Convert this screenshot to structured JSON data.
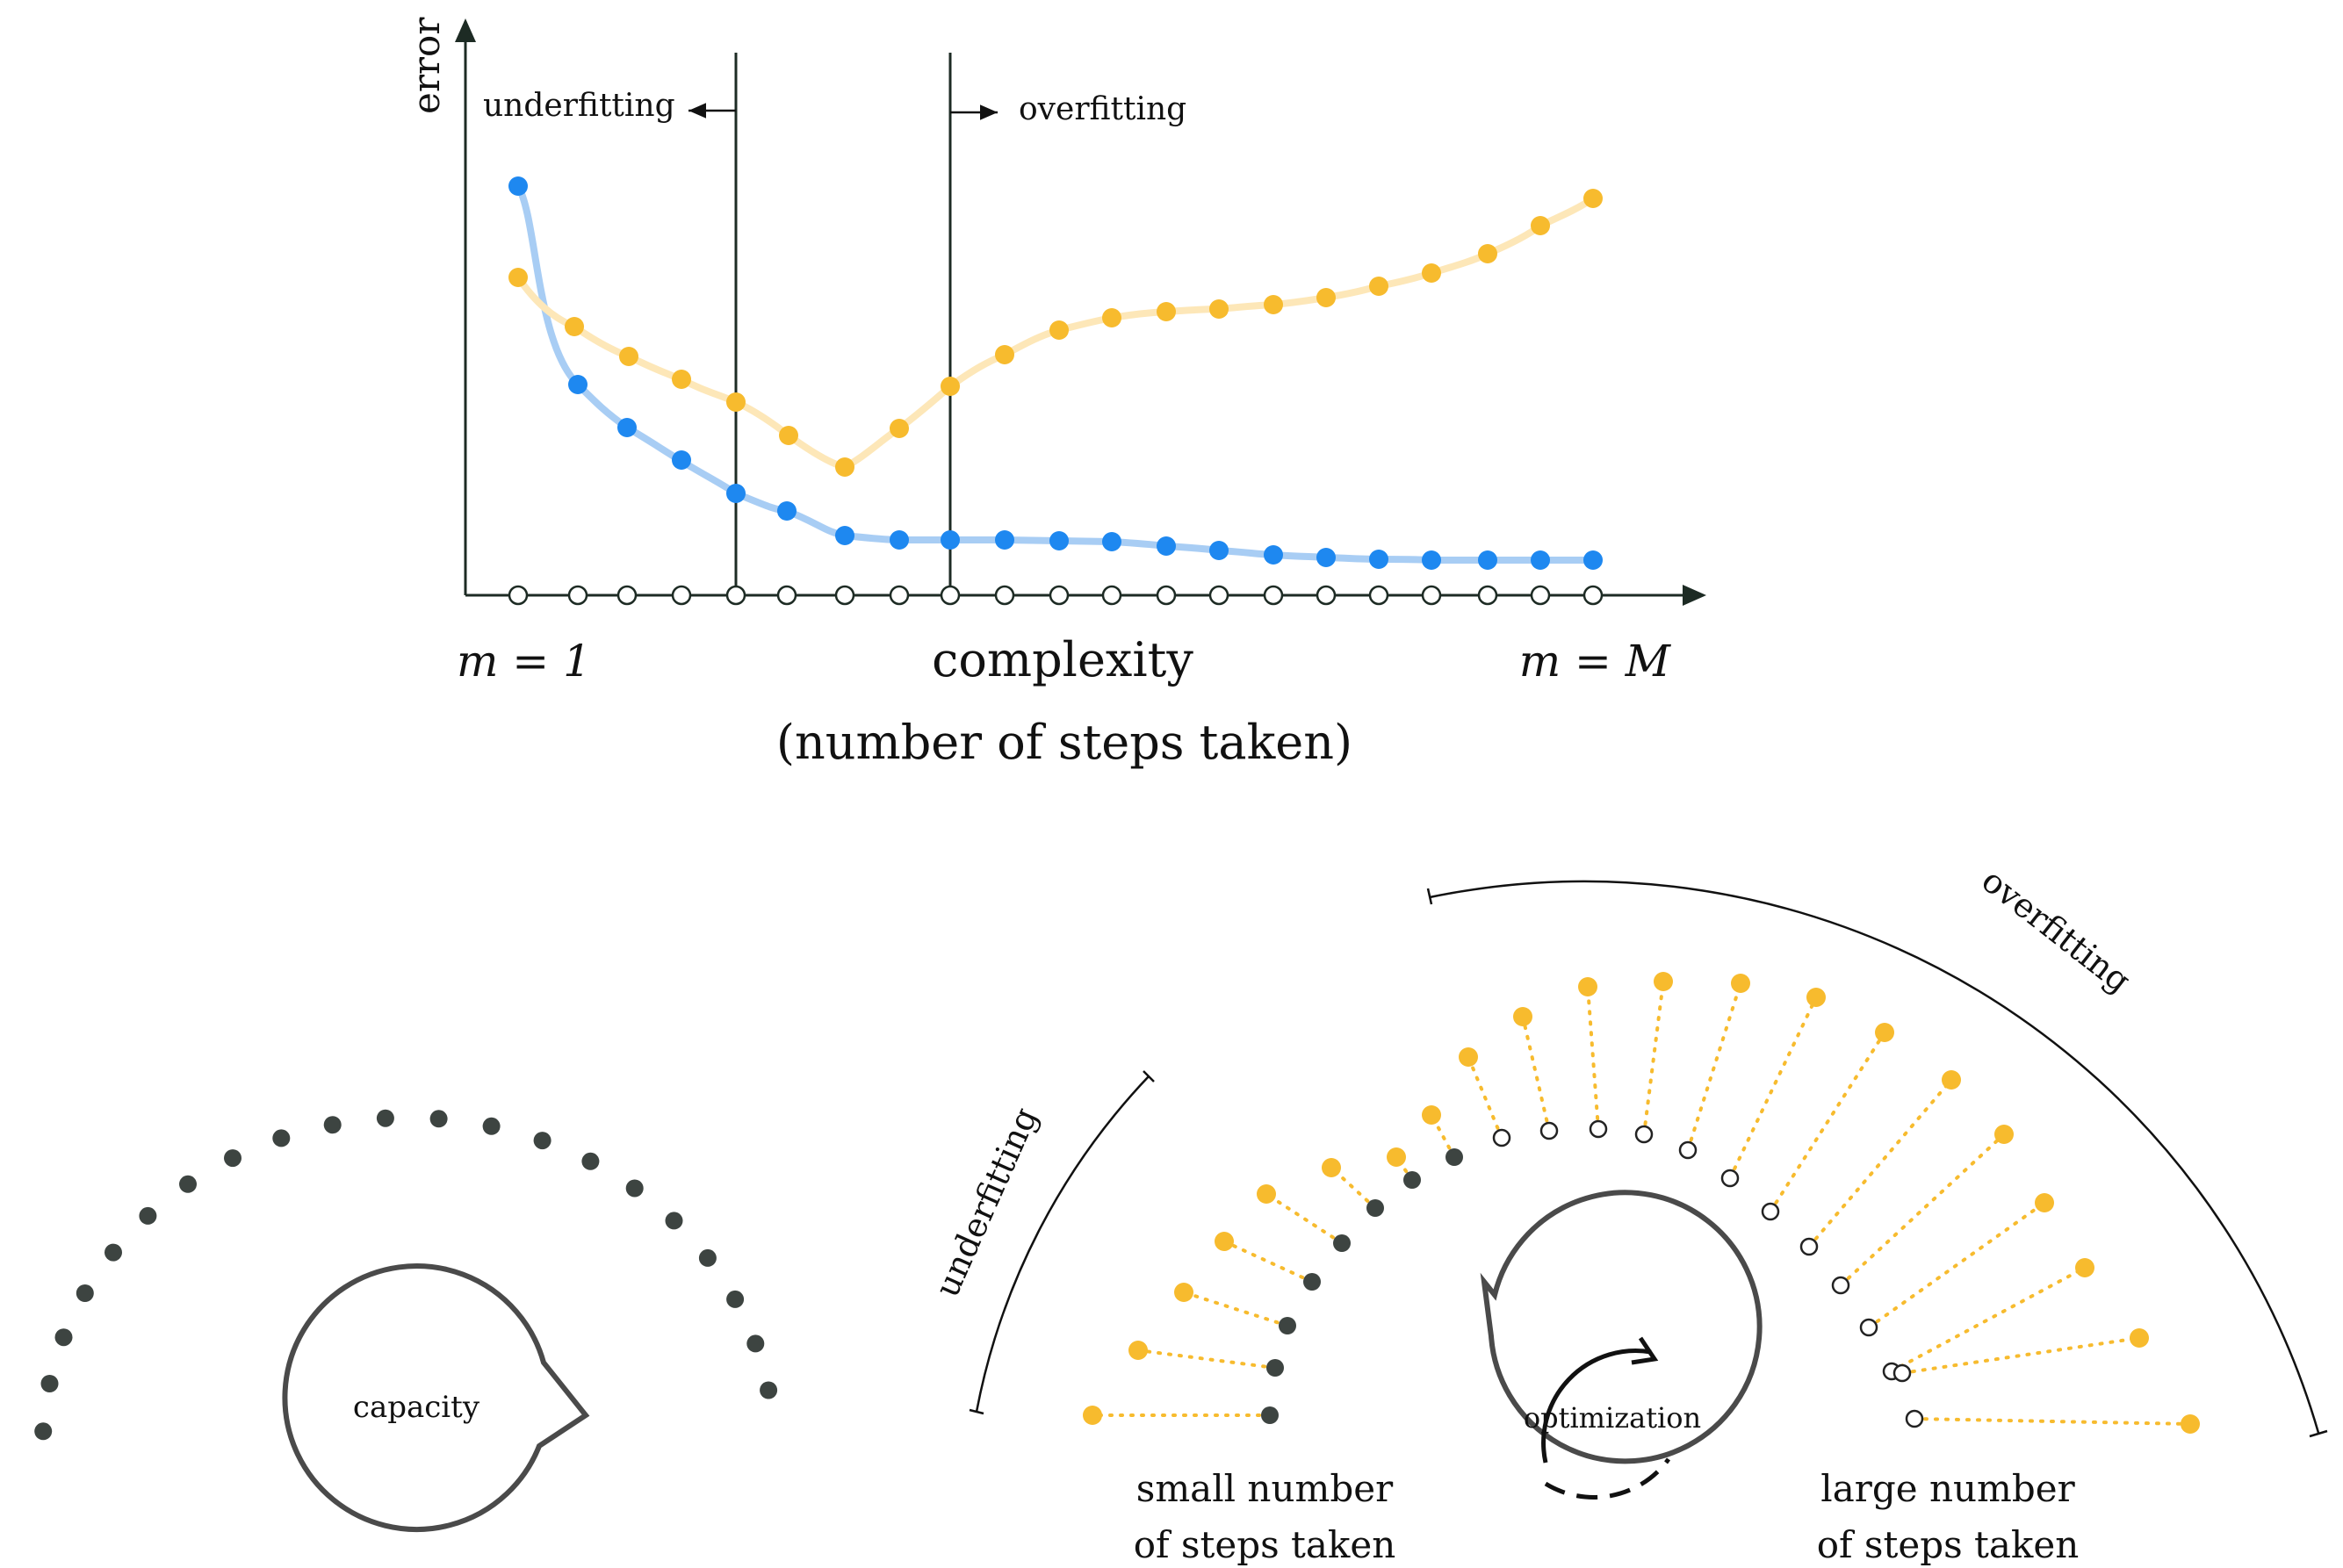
{
  "top_plot": {
    "y_axis_label": "error",
    "region_left_label": "underfitting",
    "region_right_label": "overfitting",
    "x_left_label": "m = 1",
    "x_right_label": "m = M",
    "x_axis_label": "complexity",
    "x_axis_sublabel": "(number of steps taken)",
    "colors": {
      "training": "#1e88f0",
      "validation": "#f7bb2e",
      "training_line": "#a8cdf4",
      "validation_line": "#fde7b8",
      "axis": "#1d2b24"
    }
  },
  "bottom_left": {
    "bubble_label": "capacity",
    "dot_count": 21,
    "dot_color": "#3d4441"
  },
  "bottom_right": {
    "arc_left_label": "underfitting",
    "arc_right_label": "overfitting",
    "bubble_label": "optimization",
    "bubble_icon": "cycle-arrow-icon",
    "left_caption_line1": "small number",
    "left_caption_line2": "of steps taken",
    "right_caption_line1": "large number",
    "right_caption_line2": "of steps taken"
  }
}
